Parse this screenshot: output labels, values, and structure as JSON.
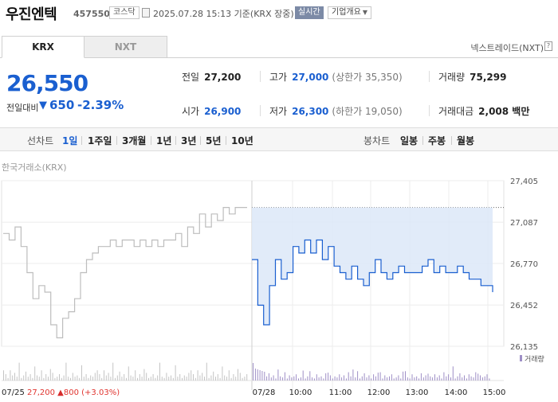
{
  "header": {
    "name": "우진엔텍",
    "code": "457550",
    "market": "코스닥",
    "datetime": "2025.07.28 15:13 기준(KRX 장중)",
    "realtime": "실시간",
    "overview": "기업개요",
    "overview_caret": "▼"
  },
  "tabs": {
    "krx": "KRX",
    "nxt": "NXT"
  },
  "nextrade": {
    "label": "넥스트레이드(NXT)",
    "help": "?"
  },
  "quote": {
    "price": "26,550",
    "change_label": "전일대비",
    "change_arrow": "▼",
    "change": "650",
    "change_pct": "-2.39%"
  },
  "stats": {
    "prev_close": {
      "label": "전일",
      "value": "27,200"
    },
    "high": {
      "label": "고가",
      "value": "27,000",
      "sub": "(상한가 35,350)"
    },
    "volume": {
      "label": "거래량",
      "value": "75,299"
    },
    "open": {
      "label": "시가",
      "value": "26,900"
    },
    "low": {
      "label": "저가",
      "value": "26,300",
      "sub": "(하한가 19,050)"
    },
    "amount": {
      "label": "거래대금",
      "value": "2,008 백만"
    }
  },
  "period": {
    "line_label": "선차트",
    "line_opts": [
      "1일",
      "1주일",
      "3개월",
      "1년",
      "3년",
      "5년",
      "10년"
    ],
    "selected": "1일",
    "candle_label": "봉차트",
    "candle_opts": [
      "일봉",
      "주봉",
      "월봉"
    ]
  },
  "chart_source": "한국거래소(KRX)",
  "colors": {
    "blue": "#1a5fd0",
    "red": "#e0342f",
    "up": "#d62c2c",
    "fill": "#dce8f8",
    "volume": "#9e8fc6"
  },
  "chart_data": {
    "type": "line",
    "yticks": [
      "27,405",
      "27,087",
      "26,770",
      "26,452",
      "26,135"
    ],
    "ylim": [
      26135,
      27405
    ],
    "xticks": [
      "07/25",
      "07/28",
      "10:00",
      "11:00",
      "12:00",
      "13:00",
      "14:00",
      "15:00"
    ],
    "volume_label": "거래량",
    "prev_day_summary": {
      "date": "07/25",
      "close": "27,200",
      "arrow": "▲",
      "change": "800",
      "pct": "(+3.03%)"
    },
    "prev_close_line": 27200,
    "series": [
      {
        "name": "07/25",
        "values": [
          27000,
          26950,
          27050,
          26900,
          26700,
          26500,
          26600,
          26550,
          26300,
          26200,
          26350,
          26400,
          26500,
          26700,
          26800,
          26850,
          26900,
          26900,
          26950,
          26900,
          26950,
          26950,
          26900,
          26950,
          26900,
          26950,
          26900,
          26950,
          26950,
          27000,
          26900,
          27050,
          27000,
          27150,
          27050,
          27150,
          27100,
          27200,
          27150,
          27200,
          27200,
          27200
        ]
      },
      {
        "name": "07/28",
        "values": [
          26800,
          26450,
          26300,
          26600,
          26800,
          26650,
          26700,
          26900,
          26850,
          26950,
          26850,
          26950,
          26800,
          26900,
          26750,
          26700,
          26650,
          26750,
          26650,
          26600,
          26700,
          26800,
          26700,
          26650,
          26700,
          26750,
          26700,
          26700,
          26700,
          26750,
          26800,
          26700,
          26750,
          26700,
          26700,
          26750,
          26700,
          26650,
          26650,
          26600,
          26600,
          26550
        ]
      }
    ]
  }
}
